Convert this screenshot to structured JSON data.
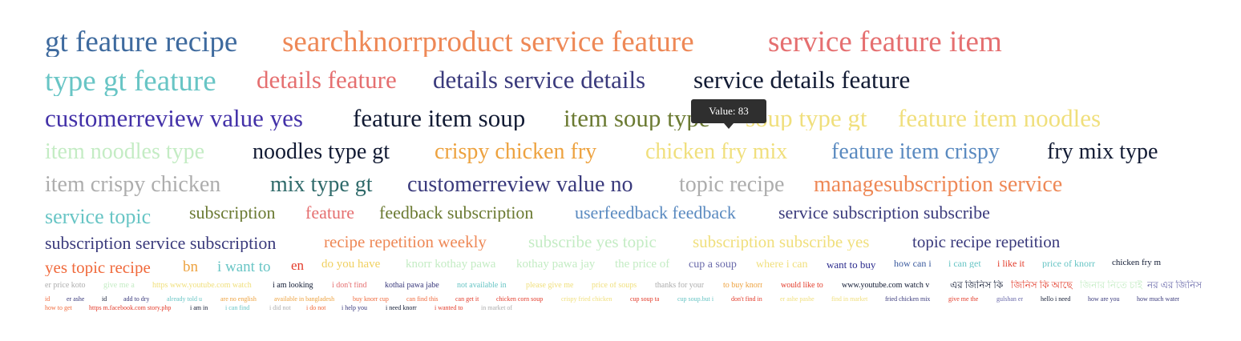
{
  "tooltip": {
    "label": "Value: 83"
  },
  "words": [
    {
      "t": "gt feature recipe",
      "c": "#3e6a9e"
    },
    {
      "t": "searchknorrproduct service feature",
      "c": "#ee8856"
    },
    {
      "t": "service feature item",
      "c": "#e56f70"
    },
    {
      "t": "type gt feature",
      "c": "#68c5c5"
    },
    {
      "t": "details feature",
      "c": "#e56f70"
    },
    {
      "t": "details service details",
      "c": "#3a3a7c"
    },
    {
      "t": "service details feature",
      "c": "#111a33"
    },
    {
      "t": "customerreview value yes",
      "c": "#4331a8"
    },
    {
      "t": "feature item soup",
      "c": "#111a33"
    },
    {
      "t": "item soup type",
      "c": "#6b7a32"
    },
    {
      "t": "soup type gt",
      "c": "#f0df7c"
    },
    {
      "t": "feature item noodles",
      "c": "#f0df7c"
    },
    {
      "t": "item noodles type",
      "c": "#c4ecc4"
    },
    {
      "t": "noodles type gt",
      "c": "#111a33"
    },
    {
      "t": "crispy chicken fry",
      "c": "#eda23f"
    },
    {
      "t": "chicken fry mix",
      "c": "#f0df7c"
    },
    {
      "t": "feature item crispy",
      "c": "#5a8ac0"
    },
    {
      "t": "fry mix type",
      "c": "#111a33"
    },
    {
      "t": "item crispy chicken",
      "c": "#adadad"
    },
    {
      "t": "mix type gt",
      "c": "#2f6a6a"
    },
    {
      "t": "customerreview value no",
      "c": "#3a3a7c"
    },
    {
      "t": "topic recipe",
      "c": "#adadad"
    },
    {
      "t": "managesubscription service",
      "c": "#ee8856"
    },
    {
      "t": "service topic",
      "c": "#68c5c5"
    },
    {
      "t": "subscription",
      "c": "#6b7a32"
    },
    {
      "t": "feature",
      "c": "#e56f70"
    },
    {
      "t": "feedback subscription",
      "c": "#6b7a32"
    },
    {
      "t": "userfeedback feedback",
      "c": "#5a8ac0"
    },
    {
      "t": "service subscription subscribe",
      "c": "#3a3a7c"
    },
    {
      "t": "subscription service subscription",
      "c": "#3a3a7c"
    },
    {
      "t": "recipe repetition weekly",
      "c": "#ee8856"
    },
    {
      "t": "subscribe yes topic",
      "c": "#c4ecc4"
    },
    {
      "t": "subscription subscribe yes",
      "c": "#f0df7c"
    },
    {
      "t": "topic recipe repetition",
      "c": "#3a3a7c"
    },
    {
      "t": "yes topic recipe",
      "c": "#f06a3c"
    },
    {
      "t": "bn",
      "c": "#eda23f"
    },
    {
      "t": "i want to",
      "c": "#68c5c5"
    },
    {
      "t": "en",
      "c": "#e33b2a"
    },
    {
      "t": "do you have",
      "c": "#f0d060"
    },
    {
      "t": "knorr kothay pawa",
      "c": "#c4ecc4"
    },
    {
      "t": "kothay pawa jay",
      "c": "#c4ecc4"
    },
    {
      "t": "the price of",
      "c": "#c4ecc4"
    },
    {
      "t": "cup a soup",
      "c": "#6a6aaa"
    },
    {
      "t": "where i can",
      "c": "#f0df7c"
    },
    {
      "t": "want to buy",
      "c": "#2a2a8c"
    },
    {
      "t": "how can i",
      "c": "#3a5a9e"
    },
    {
      "t": "i can get",
      "c": "#68c5c5"
    },
    {
      "t": "i like it",
      "c": "#e33b2a"
    },
    {
      "t": "price of knorr",
      "c": "#68c5c5"
    },
    {
      "t": "chicken fry m",
      "c": "#111a33"
    },
    {
      "t": "er price koto",
      "c": "#adadad"
    },
    {
      "t": "give me a",
      "c": "#c4ecc4"
    },
    {
      "t": "https www.youtube.com watch",
      "c": "#f0df7c"
    },
    {
      "t": "i am looking",
      "c": "#111a33"
    },
    {
      "t": "i don't find",
      "c": "#e56f70"
    },
    {
      "t": "kothai pawa jabe",
      "c": "#3a3a7c"
    },
    {
      "t": "not available in",
      "c": "#68c5c5"
    },
    {
      "t": "please give me",
      "c": "#f0df7c"
    },
    {
      "t": "price of soups",
      "c": "#f0df7c"
    },
    {
      "t": "thanks for your",
      "c": "#adadad"
    },
    {
      "t": "to buy knorr",
      "c": "#eda23f"
    },
    {
      "t": "would like to",
      "c": "#e33b2a"
    },
    {
      "t": "www.youtube.com watch v",
      "c": "#111a33"
    },
    {
      "t": "এর জিনিস কি",
      "c": "#111a33"
    },
    {
      "t": "জিনিস কি আছে",
      "c": "#e33b2a"
    },
    {
      "t": "জিনার নিতে চাই",
      "c": "#c4ecc4"
    },
    {
      "t": "নর এর জিনিস",
      "c": "#6a6aaa"
    },
    {
      "t": "id",
      "c": "#f06a3c"
    },
    {
      "t": "er ashe",
      "c": "#3a3a7c"
    },
    {
      "t": "id",
      "c": "#111a33"
    },
    {
      "t": "add to dry",
      "c": "#3a3a7c"
    },
    {
      "t": "already told u",
      "c": "#68c5c5"
    },
    {
      "t": "are no english",
      "c": "#eda23f"
    },
    {
      "t": "available in bangladesh",
      "c": "#eda23f"
    },
    {
      "t": "buy knorr cup",
      "c": "#f06a3c"
    },
    {
      "t": "can find this",
      "c": "#f06a3c"
    },
    {
      "t": "can get it",
      "c": "#e33b2a"
    },
    {
      "t": "chicken corn soup",
      "c": "#e33b2a"
    },
    {
      "t": "crispy fried chicken",
      "c": "#f0df7c"
    },
    {
      "t": "cup soup ta",
      "c": "#e33b2a"
    },
    {
      "t": "cup soup.but i",
      "c": "#68c5c5"
    },
    {
      "t": "don't find in",
      "c": "#e33b2a"
    },
    {
      "t": "er ashe pashe",
      "c": "#f0df7c"
    },
    {
      "t": "find in market",
      "c": "#f0df7c"
    },
    {
      "t": "fried chicken mix",
      "c": "#3a3a7c"
    },
    {
      "t": "give me the",
      "c": "#e33b2a"
    },
    {
      "t": "gulshan er",
      "c": "#6a6aaa"
    },
    {
      "t": "hello i need",
      "c": "#111a33"
    },
    {
      "t": "how are you",
      "c": "#3a3a7c"
    },
    {
      "t": "how much water",
      "c": "#3a3a7c"
    },
    {
      "t": "how to get",
      "c": "#f06a3c"
    },
    {
      "t": "https m.facebook.com story.php",
      "c": "#e33b2a"
    },
    {
      "t": "i am in",
      "c": "#111a33"
    },
    {
      "t": "i can find",
      "c": "#68c5c5"
    },
    {
      "t": "i did not",
      "c": "#adadad"
    },
    {
      "t": "i do not",
      "c": "#f06a3c"
    },
    {
      "t": "i help you",
      "c": "#3a3a7c"
    },
    {
      "t": "i need knorr",
      "c": "#111a33"
    },
    {
      "t": "i wanted to",
      "c": "#e33b2a"
    },
    {
      "t": "in market of",
      "c": "#adadad"
    }
  ]
}
